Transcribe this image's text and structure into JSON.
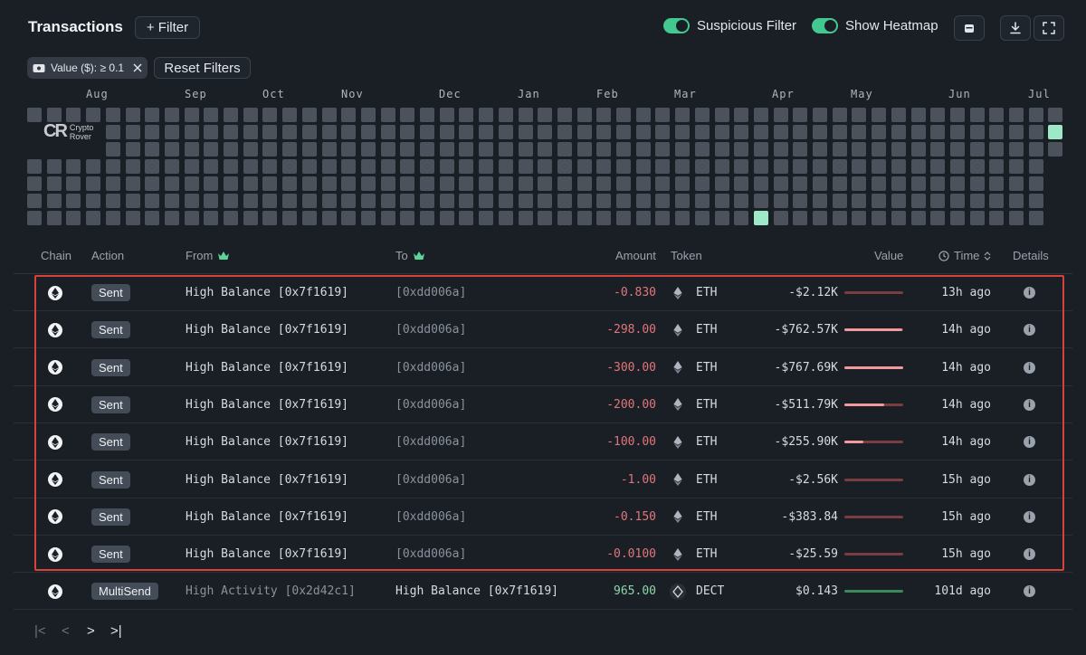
{
  "header": {
    "title": "Transactions",
    "filter_label": "+ Filter",
    "suspicious_filter_label": "Suspicious Filter",
    "show_heatmap_label": "Show Heatmap"
  },
  "chips": {
    "value_filter": "Value ($): ≥ 0.1",
    "reset_label": "Reset Filters"
  },
  "heatmap": {
    "months": [
      "Aug",
      "Sep",
      "Oct",
      "Nov",
      "Dec",
      "Jan",
      "Feb",
      "Mar",
      "Apr",
      "May",
      "Jun",
      "Jul"
    ],
    "watermark_logo": "CR",
    "watermark_line1": "Crypto",
    "watermark_line2": "Rover",
    "low_color": "#4b525c",
    "high_color": "#9de8c6"
  },
  "table": {
    "headers": {
      "chain": "Chain",
      "action": "Action",
      "from": "From",
      "to": "To",
      "amount": "Amount",
      "token": "Token",
      "value": "Value",
      "time": "Time",
      "details": "Details"
    },
    "rows": [
      {
        "action": "Sent",
        "from": "High Balance [0x7f1619]",
        "to": "[0xdd006a]",
        "amount": "-0.830",
        "token": "ETH",
        "value": "-$2.12K",
        "bar": 0.0,
        "time": "13h ago"
      },
      {
        "action": "Sent",
        "from": "High Balance [0x7f1619]",
        "to": "[0xdd006a]",
        "amount": "-298.00",
        "token": "ETH",
        "value": "-$762.57K",
        "bar": 0.99,
        "time": "14h ago"
      },
      {
        "action": "Sent",
        "from": "High Balance [0x7f1619]",
        "to": "[0xdd006a]",
        "amount": "-300.00",
        "token": "ETH",
        "value": "-$767.69K",
        "bar": 1.0,
        "time": "14h ago"
      },
      {
        "action": "Sent",
        "from": "High Balance [0x7f1619]",
        "to": "[0xdd006a]",
        "amount": "-200.00",
        "token": "ETH",
        "value": "-$511.79K",
        "bar": 0.67,
        "time": "14h ago"
      },
      {
        "action": "Sent",
        "from": "High Balance [0x7f1619]",
        "to": "[0xdd006a]",
        "amount": "-100.00",
        "token": "ETH",
        "value": "-$255.90K",
        "bar": 0.33,
        "time": "14h ago"
      },
      {
        "action": "Sent",
        "from": "High Balance [0x7f1619]",
        "to": "[0xdd006a]",
        "amount": "-1.00",
        "token": "ETH",
        "value": "-$2.56K",
        "bar": 0.0,
        "time": "15h ago"
      },
      {
        "action": "Sent",
        "from": "High Balance [0x7f1619]",
        "to": "[0xdd006a]",
        "amount": "-0.150",
        "token": "ETH",
        "value": "-$383.84",
        "bar": 0.0,
        "time": "15h ago"
      },
      {
        "action": "Sent",
        "from": "High Balance [0x7f1619]",
        "to": "[0xdd006a]",
        "amount": "-0.0100",
        "token": "ETH",
        "value": "-$25.59",
        "bar": 0.0,
        "time": "15h ago"
      },
      {
        "action": "MultiSend",
        "from": "High Activity [0x2d42c1]",
        "to": "High Balance [0x7f1619]",
        "amount": "965.00",
        "token": "DECT",
        "value": "$0.143",
        "bar": 0.0,
        "time": "101d ago",
        "incoming": true
      }
    ]
  },
  "colors": {
    "negative": "#e0767a",
    "positive": "#8fd6a8",
    "accent_toggle": "#41c98f",
    "highlight_border": "#d8403c"
  }
}
